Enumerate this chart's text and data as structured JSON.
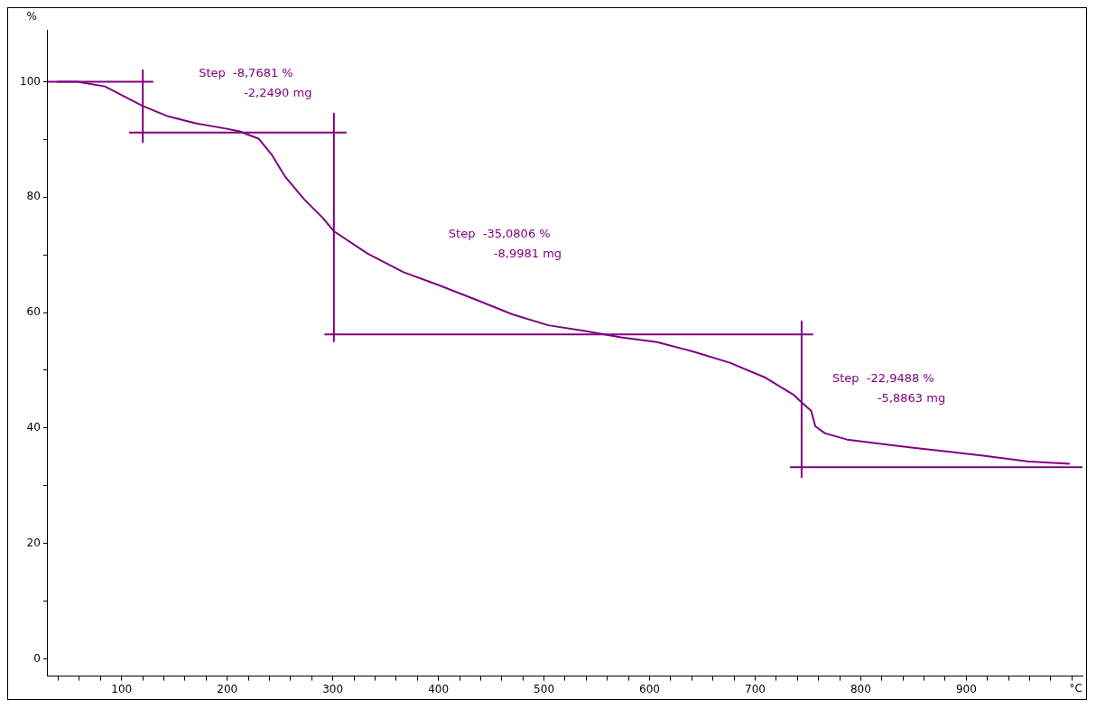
{
  "chart_data": {
    "type": "line",
    "xlabel": "°C",
    "ylabel": "%",
    "xlim": [
      30,
      1010
    ],
    "ylim": [
      -3,
      109
    ],
    "xticks": [
      {
        "value": 40,
        "label": null
      },
      {
        "value": 60,
        "label": null
      },
      {
        "value": 80,
        "label": null
      },
      100,
      {
        "value": 120,
        "label": null
      },
      {
        "value": 140,
        "label": null
      },
      {
        "value": 160,
        "label": null
      },
      {
        "value": 180,
        "label": null
      },
      200,
      {
        "value": 220,
        "label": null
      },
      {
        "value": 240,
        "label": null
      },
      {
        "value": 260,
        "label": null
      },
      {
        "value": 280,
        "label": null
      },
      300,
      {
        "value": 320,
        "label": null
      },
      {
        "value": 340,
        "label": null
      },
      {
        "value": 360,
        "label": null
      },
      {
        "value": 380,
        "label": null
      },
      400,
      {
        "value": 420,
        "label": null
      },
      {
        "value": 440,
        "label": null
      },
      {
        "value": 460,
        "label": null
      },
      {
        "value": 480,
        "label": null
      },
      500,
      {
        "value": 520,
        "label": null
      },
      {
        "value": 540,
        "label": null
      },
      {
        "value": 560,
        "label": null
      },
      {
        "value": 580,
        "label": null
      },
      600,
      {
        "value": 620,
        "label": null
      },
      {
        "value": 640,
        "label": null
      },
      {
        "value": 660,
        "label": null
      },
      {
        "value": 680,
        "label": null
      },
      700,
      {
        "value": 720,
        "label": null
      },
      {
        "value": 740,
        "label": null
      },
      {
        "value": 760,
        "label": null
      },
      {
        "value": 780,
        "label": null
      },
      800,
      {
        "value": 820,
        "label": null
      },
      {
        "value": 840,
        "label": null
      },
      {
        "value": 860,
        "label": null
      },
      {
        "value": 880,
        "label": null
      },
      900,
      {
        "value": 920,
        "label": null
      },
      {
        "value": 940,
        "label": null
      },
      {
        "value": 960,
        "label": null
      },
      {
        "value": 980,
        "label": null
      },
      {
        "value": 1000,
        "label": null
      }
    ],
    "yticks": [
      0,
      {
        "value": 10,
        "label": null
      },
      20,
      {
        "value": 30,
        "label": null
      },
      40,
      {
        "value": 50,
        "label": null
      },
      60,
      {
        "value": 70,
        "label": null
      },
      80,
      {
        "value": 90,
        "label": null
      },
      100
    ],
    "grid": false,
    "legend": false,
    "marker": "none",
    "line_style": "solid",
    "series": [
      {
        "color": "#800080",
        "x": [
          39,
          58,
          84,
          101,
          120,
          144,
          170,
          195,
          212,
          230,
          242,
          255,
          273,
          290,
          301,
          333,
          367,
          401,
          436,
          470,
          504,
          539,
          573,
          607,
          642,
          676,
          710,
          736,
          745,
          753,
          757,
          766,
          787,
          830,
          873,
          916,
          959,
          998
        ],
        "values": [
          100,
          100,
          99.2,
          97.6,
          95.8,
          94,
          92.8,
          92,
          91.4,
          90.1,
          87.4,
          83.5,
          79.6,
          76.5,
          74.1,
          70.2,
          67,
          64.7,
          62.2,
          59.7,
          57.8,
          56.8,
          55.7,
          54.9,
          53.2,
          51.3,
          48.7,
          45.8,
          44.3,
          43,
          40.3,
          39.1,
          38,
          37,
          36.1,
          35.2,
          34.2,
          33.8
        ]
      },
      {
        "color": "#800080",
        "x": [
          30,
          130,
          null,
          120,
          120,
          null,
          107,
          313,
          null,
          301,
          301,
          null,
          292,
          755,
          null,
          744,
          744,
          null,
          733,
          1010
        ],
        "values": [
          100,
          100,
          null,
          102,
          89.5,
          null,
          91.2,
          91.2,
          null,
          94.5,
          55,
          null,
          56.2,
          56.2,
          null,
          58.5,
          31.5,
          null,
          33.2,
          33.2
        ]
      }
    ],
    "annotations": [
      "Step  -8,7681 %",
      "-2,2490 mg",
      "Step  -35,0806 %",
      "-8,9981 mg",
      "Step  -22,9488 %",
      "-5,8863 mg"
    ]
  }
}
